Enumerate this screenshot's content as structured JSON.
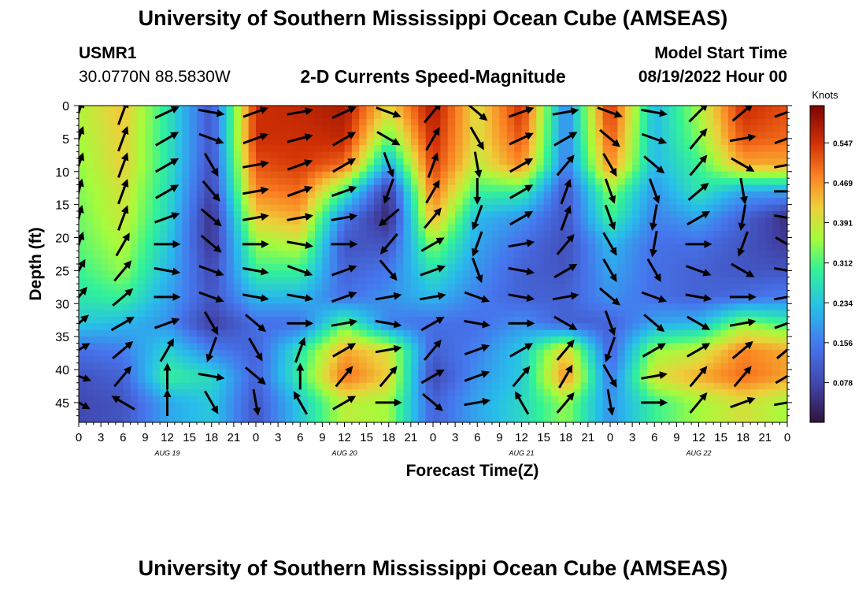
{
  "header": {
    "title_top": "University of Southern Mississippi Ocean Cube (AMSEAS)",
    "title_bottom": "University of Southern Mississippi Ocean Cube (AMSEAS)",
    "station_id": "USMR1",
    "station_coords": "30.0770N  88.5830W",
    "chart_title": "2-D Currents Speed-Magnitude",
    "model_start_label": "Model Start Time",
    "model_start_value": "08/19/2022 Hour 00"
  },
  "colors": {
    "low": "#30123b",
    "mid": "#28bceb",
    "high": "#7a0403",
    "arrow": "#000000"
  },
  "chart_data": {
    "type": "heatmap",
    "title": "2-D Currents Speed-Magnitude",
    "xlabel": "Forecast Time(Z)",
    "ylabel": "Depth (ft)",
    "x_ticks": [
      "0",
      "3",
      "6",
      "9",
      "12",
      "15",
      "18",
      "21",
      "0",
      "3",
      "6",
      "9",
      "12",
      "15",
      "18",
      "21",
      "0",
      "3",
      "6",
      "9",
      "12",
      "15",
      "18",
      "21",
      "0",
      "3",
      "6",
      "9",
      "12",
      "15",
      "18",
      "21",
      "0"
    ],
    "x_range_hours": [
      0,
      96
    ],
    "date_labels": [
      {
        "label": "AUG 19",
        "hour": 12
      },
      {
        "label": "AUG 20",
        "hour": 36
      },
      {
        "label": "AUG 21",
        "hour": 60
      },
      {
        "label": "AUG 22",
        "hour": 84
      }
    ],
    "y_ticks": [
      0,
      5,
      10,
      15,
      20,
      25,
      30,
      35,
      40,
      45
    ],
    "y_range_ft": [
      0,
      48
    ],
    "colorbar": {
      "unit": "Knots",
      "ticks": [
        0.547,
        0.469,
        0.391,
        0.312,
        0.234,
        0.156,
        0.078
      ],
      "range": [
        0,
        0.62
      ]
    },
    "depths_ft": [
      1,
      5,
      9,
      13,
      17,
      21,
      25,
      29,
      33,
      37,
      41,
      45
    ],
    "hours": [
      0,
      6,
      12,
      18,
      24,
      30,
      36,
      42,
      48,
      54,
      60,
      66,
      72,
      78,
      84,
      90,
      96
    ],
    "speed_knots": [
      [
        0.37,
        0.43,
        0.28,
        0.1,
        0.55,
        0.56,
        0.58,
        0.4,
        0.58,
        0.4,
        0.55,
        0.16,
        0.55,
        0.22,
        0.36,
        0.55,
        0.52
      ],
      [
        0.36,
        0.42,
        0.28,
        0.1,
        0.55,
        0.55,
        0.56,
        0.32,
        0.56,
        0.4,
        0.52,
        0.16,
        0.52,
        0.22,
        0.34,
        0.52,
        0.5
      ],
      [
        0.35,
        0.42,
        0.28,
        0.09,
        0.52,
        0.54,
        0.5,
        0.2,
        0.54,
        0.38,
        0.48,
        0.15,
        0.48,
        0.22,
        0.3,
        0.45,
        0.45
      ],
      [
        0.34,
        0.4,
        0.27,
        0.07,
        0.48,
        0.5,
        0.3,
        0.05,
        0.5,
        0.3,
        0.3,
        0.1,
        0.35,
        0.18,
        0.28,
        0.2,
        0.2
      ],
      [
        0.33,
        0.39,
        0.26,
        0.04,
        0.42,
        0.45,
        0.15,
        0.03,
        0.45,
        0.22,
        0.18,
        0.1,
        0.3,
        0.16,
        0.2,
        0.12,
        0.04
      ],
      [
        0.32,
        0.37,
        0.24,
        0.05,
        0.35,
        0.38,
        0.1,
        0.1,
        0.35,
        0.2,
        0.14,
        0.09,
        0.22,
        0.14,
        0.14,
        0.1,
        0.06
      ],
      [
        0.3,
        0.35,
        0.22,
        0.08,
        0.3,
        0.3,
        0.12,
        0.15,
        0.28,
        0.18,
        0.12,
        0.1,
        0.2,
        0.14,
        0.12,
        0.1,
        0.1
      ],
      [
        0.28,
        0.3,
        0.2,
        0.1,
        0.22,
        0.22,
        0.14,
        0.18,
        0.22,
        0.16,
        0.12,
        0.12,
        0.18,
        0.14,
        0.12,
        0.14,
        0.16
      ],
      [
        0.24,
        0.22,
        0.18,
        0.06,
        0.14,
        0.14,
        0.32,
        0.16,
        0.14,
        0.14,
        0.18,
        0.12,
        0.12,
        0.2,
        0.22,
        0.35,
        0.3
      ],
      [
        0.14,
        0.16,
        0.25,
        0.16,
        0.12,
        0.28,
        0.45,
        0.4,
        0.12,
        0.16,
        0.24,
        0.42,
        0.12,
        0.35,
        0.38,
        0.48,
        0.45
      ],
      [
        0.1,
        0.12,
        0.3,
        0.26,
        0.12,
        0.3,
        0.5,
        0.42,
        0.08,
        0.18,
        0.24,
        0.48,
        0.15,
        0.4,
        0.45,
        0.5,
        0.46
      ],
      [
        0.08,
        0.1,
        0.2,
        0.24,
        0.1,
        0.24,
        0.38,
        0.36,
        0.12,
        0.2,
        0.26,
        0.35,
        0.18,
        0.3,
        0.36,
        0.4,
        0.36
      ]
    ],
    "arrows_deg": [
      [
        20,
        20,
        65,
        100,
        70,
        80,
        65,
        110,
        40,
        130,
        70,
        80,
        110,
        100,
        45,
        50,
        70
      ],
      [
        20,
        20,
        60,
        110,
        70,
        75,
        60,
        120,
        30,
        150,
        65,
        60,
        130,
        110,
        40,
        80,
        70
      ],
      [
        20,
        20,
        60,
        150,
        80,
        70,
        60,
        160,
        20,
        170,
        60,
        40,
        150,
        130,
        40,
        120,
        80
      ],
      [
        15,
        20,
        60,
        140,
        80,
        70,
        70,
        200,
        30,
        180,
        60,
        20,
        160,
        160,
        50,
        170,
        90
      ],
      [
        15,
        20,
        70,
        130,
        80,
        80,
        80,
        230,
        40,
        200,
        60,
        20,
        160,
        190,
        60,
        190,
        100
      ],
      [
        20,
        30,
        90,
        130,
        90,
        100,
        90,
        220,
        60,
        200,
        80,
        40,
        150,
        190,
        90,
        200,
        120
      ],
      [
        30,
        40,
        100,
        110,
        100,
        110,
        70,
        140,
        70,
        160,
        100,
        60,
        150,
        150,
        110,
        120,
        100
      ],
      [
        40,
        50,
        90,
        110,
        100,
        100,
        70,
        80,
        80,
        110,
        100,
        80,
        130,
        110,
        100,
        90,
        80
      ],
      [
        50,
        60,
        70,
        150,
        130,
        90,
        80,
        100,
        60,
        100,
        90,
        120,
        160,
        130,
        120,
        80,
        70
      ],
      [
        60,
        50,
        30,
        200,
        150,
        20,
        60,
        80,
        40,
        70,
        60,
        40,
        200,
        60,
        60,
        50,
        50
      ],
      [
        110,
        40,
        0,
        100,
        130,
        0,
        40,
        40,
        60,
        70,
        40,
        30,
        150,
        80,
        40,
        40,
        60
      ],
      [
        120,
        300,
        0,
        150,
        170,
        330,
        60,
        90,
        130,
        80,
        330,
        40,
        170,
        90,
        40,
        70,
        80
      ]
    ]
  }
}
